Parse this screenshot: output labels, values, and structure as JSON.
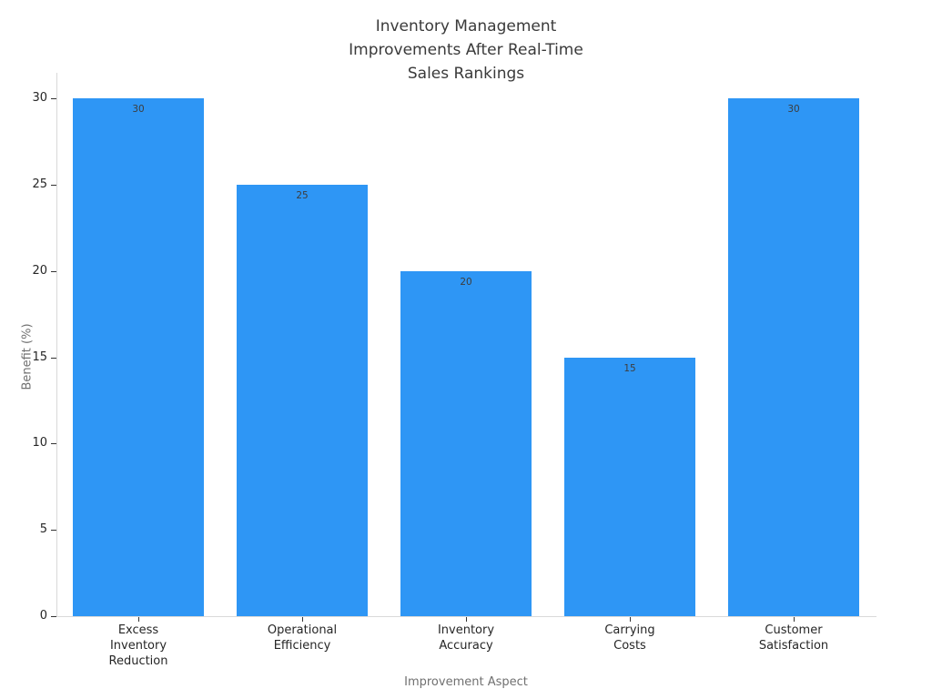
{
  "chart_data": {
    "type": "bar",
    "title": "Inventory Management\nImprovements After Real-Time\nSales Rankings",
    "categories": [
      "Excess Inventory Reduction",
      "Operational Efficiency",
      "Inventory Accuracy",
      "Carrying Costs",
      "Customer Satisfaction"
    ],
    "category_lines": [
      [
        "Excess",
        "Inventory",
        "Reduction"
      ],
      [
        "Operational",
        "Efficiency"
      ],
      [
        "Inventory",
        "Accuracy"
      ],
      [
        "Carrying",
        "Costs"
      ],
      [
        "Customer",
        "Satisfaction"
      ]
    ],
    "values": [
      30,
      25,
      20,
      15,
      30
    ],
    "value_labels": [
      "30",
      "25",
      "20",
      "15",
      "30"
    ],
    "xlabel": "Improvement Aspect",
    "ylabel": "Benefit (%)",
    "yticks": [
      0,
      5,
      10,
      15,
      20,
      25,
      30
    ],
    "ylim": [
      0,
      30
    ],
    "grid": false,
    "legend": null,
    "colors": {
      "bar": "#2e96f5",
      "title_text": "#3a3a3a",
      "tick_text": "#262626",
      "axis_title_text": "#707070",
      "value_label_text": "#3d3d3d",
      "spine": "#d9d9d9",
      "tick_mark": "#333333",
      "background": "#ffffff"
    }
  }
}
